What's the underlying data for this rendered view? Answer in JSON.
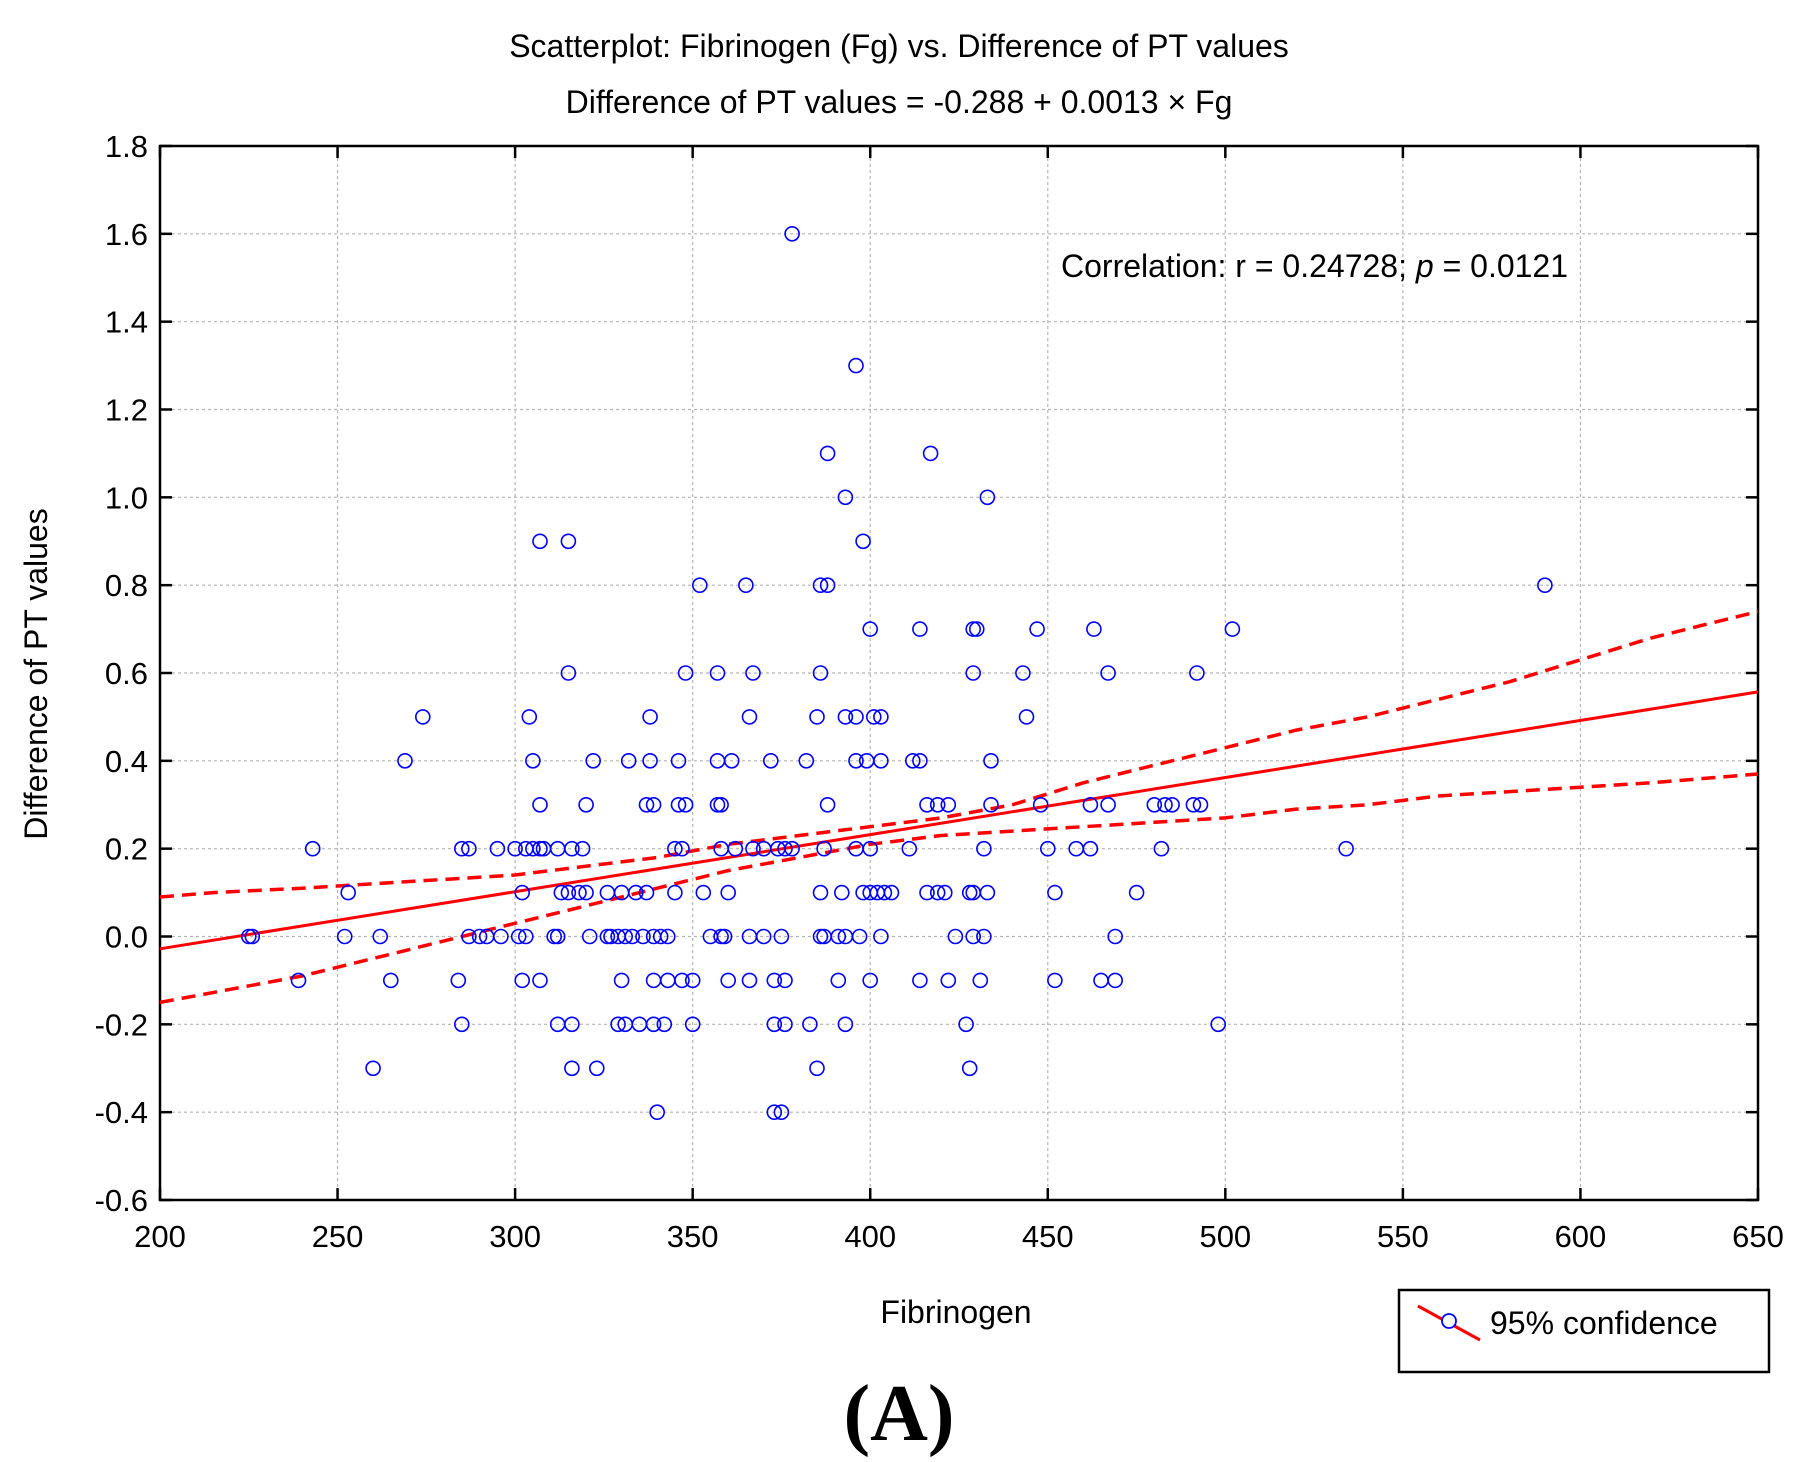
{
  "chart_data": {
    "type": "scatter",
    "title": "Scatterplot: Fibrinogen (Fg) vs. Difference of PT values",
    "subtitle": "Difference of PT values = -0.288 + 0.0013 × Fg",
    "xlabel": "Fibrinogen",
    "ylabel": "Difference of PT values",
    "xlim": [
      200,
      650
    ],
    "ylim": [
      -0.6,
      1.8
    ],
    "xticks": [
      200,
      250,
      300,
      350,
      400,
      450,
      500,
      550,
      600,
      650
    ],
    "yticks": [
      1.8,
      1.6,
      1.4,
      1.2,
      1.0,
      0.8,
      0.6,
      0.4,
      0.2,
      0.0,
      -0.2,
      -0.4,
      -0.6
    ],
    "ytick_labels": [
      "1.8",
      "1.6",
      "1.4",
      "1.2",
      "1.0",
      "0.8",
      "0.6",
      "0.4",
      "0.2",
      "0.0",
      "-0.2",
      "-0.4",
      "-0.6"
    ],
    "grid": true,
    "annotation": {
      "prefix": "Correlation:  r = 0.24728;  ",
      "p_symbol": "p",
      "suffix": " = 0.0121"
    },
    "legend": {
      "label": "95% confidence",
      "position": "bottom-right"
    },
    "panel_label": "(A)",
    "regression": {
      "intercept": -0.288,
      "slope": 0.0013
    },
    "confidence_upper": [
      [
        200,
        0.09
      ],
      [
        215,
        0.1
      ],
      [
        240,
        0.11
      ],
      [
        260,
        0.12
      ],
      [
        280,
        0.13
      ],
      [
        300,
        0.14
      ],
      [
        320,
        0.16
      ],
      [
        340,
        0.18
      ],
      [
        360,
        0.21
      ],
      [
        380,
        0.23
      ],
      [
        400,
        0.25
      ],
      [
        420,
        0.27
      ],
      [
        440,
        0.3
      ],
      [
        460,
        0.35
      ],
      [
        480,
        0.39
      ],
      [
        500,
        0.43
      ],
      [
        520,
        0.47
      ],
      [
        540,
        0.5
      ],
      [
        560,
        0.54
      ],
      [
        580,
        0.58
      ],
      [
        600,
        0.63
      ],
      [
        620,
        0.68
      ],
      [
        650,
        0.74
      ]
    ],
    "confidence_lower": [
      [
        200,
        -0.15
      ],
      [
        220,
        -0.12
      ],
      [
        240,
        -0.09
      ],
      [
        260,
        -0.05
      ],
      [
        280,
        -0.01
      ],
      [
        300,
        0.03
      ],
      [
        320,
        0.07
      ],
      [
        340,
        0.11
      ],
      [
        360,
        0.15
      ],
      [
        380,
        0.18
      ],
      [
        400,
        0.21
      ],
      [
        420,
        0.23
      ],
      [
        440,
        0.24
      ],
      [
        460,
        0.25
      ],
      [
        480,
        0.26
      ],
      [
        500,
        0.27
      ],
      [
        520,
        0.29
      ],
      [
        540,
        0.3
      ],
      [
        560,
        0.32
      ],
      [
        580,
        0.33
      ],
      [
        600,
        0.34
      ],
      [
        620,
        0.35
      ],
      [
        650,
        0.37
      ]
    ],
    "points": [
      [
        378,
        1.6
      ],
      [
        396,
        1.3
      ],
      [
        388,
        1.1
      ],
      [
        417,
        1.1
      ],
      [
        393,
        1.0
      ],
      [
        433,
        1.0
      ],
      [
        307,
        0.9
      ],
      [
        315,
        0.9
      ],
      [
        398,
        0.9
      ],
      [
        352,
        0.8
      ],
      [
        365,
        0.8
      ],
      [
        386,
        0.8
      ],
      [
        388,
        0.8
      ],
      [
        590,
        0.8
      ],
      [
        400,
        0.7
      ],
      [
        414,
        0.7
      ],
      [
        429,
        0.7
      ],
      [
        430,
        0.7
      ],
      [
        447,
        0.7
      ],
      [
        463,
        0.7
      ],
      [
        502,
        0.7
      ],
      [
        315,
        0.6
      ],
      [
        348,
        0.6
      ],
      [
        357,
        0.6
      ],
      [
        367,
        0.6
      ],
      [
        386,
        0.6
      ],
      [
        429,
        0.6
      ],
      [
        443,
        0.6
      ],
      [
        467,
        0.6
      ],
      [
        492,
        0.6
      ],
      [
        274,
        0.5
      ],
      [
        304,
        0.5
      ],
      [
        338,
        0.5
      ],
      [
        366,
        0.5
      ],
      [
        385,
        0.5
      ],
      [
        393,
        0.5
      ],
      [
        396,
        0.5
      ],
      [
        401,
        0.5
      ],
      [
        403,
        0.5
      ],
      [
        444,
        0.5
      ],
      [
        269,
        0.4
      ],
      [
        305,
        0.4
      ],
      [
        322,
        0.4
      ],
      [
        332,
        0.4
      ],
      [
        338,
        0.4
      ],
      [
        346,
        0.4
      ],
      [
        357,
        0.4
      ],
      [
        361,
        0.4
      ],
      [
        372,
        0.4
      ],
      [
        382,
        0.4
      ],
      [
        396,
        0.4
      ],
      [
        399,
        0.4
      ],
      [
        403,
        0.4
      ],
      [
        412,
        0.4
      ],
      [
        414,
        0.4
      ],
      [
        434,
        0.4
      ],
      [
        307,
        0.3
      ],
      [
        320,
        0.3
      ],
      [
        337,
        0.3
      ],
      [
        339,
        0.3
      ],
      [
        346,
        0.3
      ],
      [
        348,
        0.3
      ],
      [
        357,
        0.3
      ],
      [
        358,
        0.3
      ],
      [
        388,
        0.3
      ],
      [
        416,
        0.3
      ],
      [
        419,
        0.3
      ],
      [
        422,
        0.3
      ],
      [
        434,
        0.3
      ],
      [
        448,
        0.3
      ],
      [
        462,
        0.3
      ],
      [
        467,
        0.3
      ],
      [
        480,
        0.3
      ],
      [
        483,
        0.3
      ],
      [
        485,
        0.3
      ],
      [
        491,
        0.3
      ],
      [
        493,
        0.3
      ],
      [
        243,
        0.2
      ],
      [
        285,
        0.2
      ],
      [
        287,
        0.2
      ],
      [
        295,
        0.2
      ],
      [
        300,
        0.2
      ],
      [
        303,
        0.2
      ],
      [
        305,
        0.2
      ],
      [
        307,
        0.2
      ],
      [
        308,
        0.2
      ],
      [
        312,
        0.2
      ],
      [
        316,
        0.2
      ],
      [
        319,
        0.2
      ],
      [
        345,
        0.2
      ],
      [
        347,
        0.2
      ],
      [
        358,
        0.2
      ],
      [
        362,
        0.2
      ],
      [
        367,
        0.2
      ],
      [
        370,
        0.2
      ],
      [
        374,
        0.2
      ],
      [
        376,
        0.2
      ],
      [
        378,
        0.2
      ],
      [
        387,
        0.2
      ],
      [
        396,
        0.2
      ],
      [
        400,
        0.2
      ],
      [
        411,
        0.2
      ],
      [
        432,
        0.2
      ],
      [
        450,
        0.2
      ],
      [
        458,
        0.2
      ],
      [
        462,
        0.2
      ],
      [
        482,
        0.2
      ],
      [
        534,
        0.2
      ],
      [
        253,
        0.1
      ],
      [
        302,
        0.1
      ],
      [
        313,
        0.1
      ],
      [
        315,
        0.1
      ],
      [
        318,
        0.1
      ],
      [
        320,
        0.1
      ],
      [
        326,
        0.1
      ],
      [
        330,
        0.1
      ],
      [
        334,
        0.1
      ],
      [
        337,
        0.1
      ],
      [
        345,
        0.1
      ],
      [
        353,
        0.1
      ],
      [
        360,
        0.1
      ],
      [
        386,
        0.1
      ],
      [
        392,
        0.1
      ],
      [
        398,
        0.1
      ],
      [
        400,
        0.1
      ],
      [
        402,
        0.1
      ],
      [
        404,
        0.1
      ],
      [
        406,
        0.1
      ],
      [
        416,
        0.1
      ],
      [
        419,
        0.1
      ],
      [
        421,
        0.1
      ],
      [
        428,
        0.1
      ],
      [
        429,
        0.1
      ],
      [
        433,
        0.1
      ],
      [
        452,
        0.1
      ],
      [
        475,
        0.1
      ],
      [
        225,
        0.0
      ],
      [
        226,
        0.0
      ],
      [
        252,
        0.0
      ],
      [
        262,
        0.0
      ],
      [
        287,
        0.0
      ],
      [
        290,
        0.0
      ],
      [
        292,
        0.0
      ],
      [
        296,
        0.0
      ],
      [
        301,
        0.0
      ],
      [
        303,
        0.0
      ],
      [
        311,
        0.0
      ],
      [
        312,
        0.0
      ],
      [
        321,
        0.0
      ],
      [
        326,
        0.0
      ],
      [
        327,
        0.0
      ],
      [
        329,
        0.0
      ],
      [
        331,
        0.0
      ],
      [
        333,
        0.0
      ],
      [
        336,
        0.0
      ],
      [
        339,
        0.0
      ],
      [
        341,
        0.0
      ],
      [
        343,
        0.0
      ],
      [
        355,
        0.0
      ],
      [
        358,
        0.0
      ],
      [
        359,
        0.0
      ],
      [
        366,
        0.0
      ],
      [
        370,
        0.0
      ],
      [
        375,
        0.0
      ],
      [
        386,
        0.0
      ],
      [
        387,
        0.0
      ],
      [
        391,
        0.0
      ],
      [
        393,
        0.0
      ],
      [
        397,
        0.0
      ],
      [
        403,
        0.0
      ],
      [
        424,
        0.0
      ],
      [
        429,
        0.0
      ],
      [
        432,
        0.0
      ],
      [
        469,
        0.0
      ],
      [
        239,
        -0.1
      ],
      [
        265,
        -0.1
      ],
      [
        284,
        -0.1
      ],
      [
        302,
        -0.1
      ],
      [
        307,
        -0.1
      ],
      [
        330,
        -0.1
      ],
      [
        339,
        -0.1
      ],
      [
        343,
        -0.1
      ],
      [
        347,
        -0.1
      ],
      [
        350,
        -0.1
      ],
      [
        360,
        -0.1
      ],
      [
        366,
        -0.1
      ],
      [
        373,
        -0.1
      ],
      [
        376,
        -0.1
      ],
      [
        391,
        -0.1
      ],
      [
        400,
        -0.1
      ],
      [
        414,
        -0.1
      ],
      [
        422,
        -0.1
      ],
      [
        431,
        -0.1
      ],
      [
        452,
        -0.1
      ],
      [
        465,
        -0.1
      ],
      [
        469,
        -0.1
      ],
      [
        285,
        -0.2
      ],
      [
        312,
        -0.2
      ],
      [
        316,
        -0.2
      ],
      [
        329,
        -0.2
      ],
      [
        331,
        -0.2
      ],
      [
        335,
        -0.2
      ],
      [
        339,
        -0.2
      ],
      [
        342,
        -0.2
      ],
      [
        350,
        -0.2
      ],
      [
        373,
        -0.2
      ],
      [
        376,
        -0.2
      ],
      [
        383,
        -0.2
      ],
      [
        393,
        -0.2
      ],
      [
        427,
        -0.2
      ],
      [
        498,
        -0.2
      ],
      [
        260,
        -0.3
      ],
      [
        316,
        -0.3
      ],
      [
        323,
        -0.3
      ],
      [
        385,
        -0.3
      ],
      [
        428,
        -0.3
      ],
      [
        340,
        -0.4
      ],
      [
        373,
        -0.4
      ],
      [
        375,
        -0.4
      ]
    ]
  }
}
